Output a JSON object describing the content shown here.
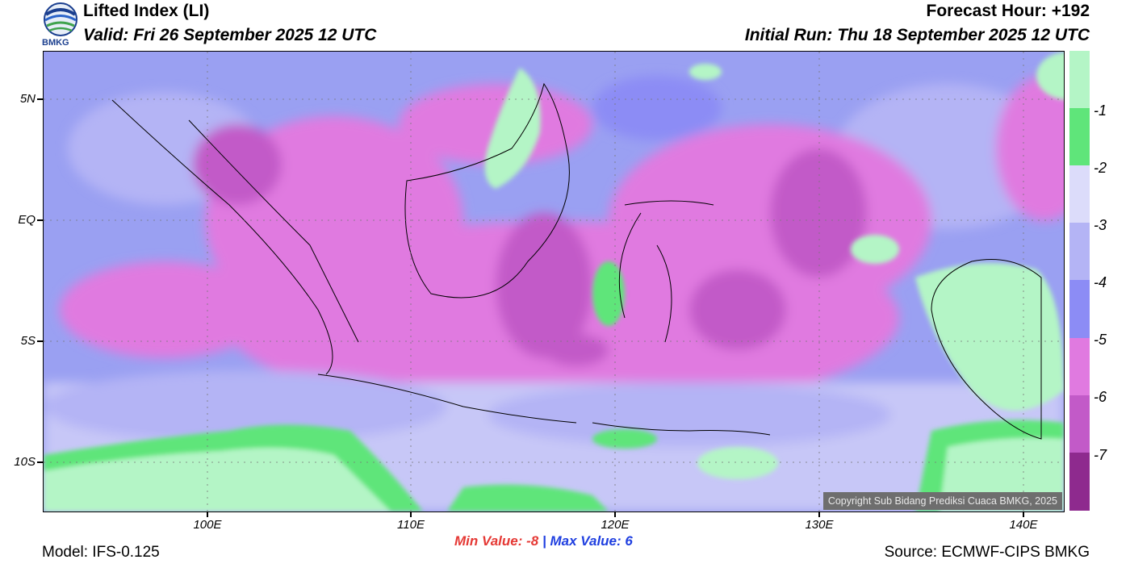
{
  "header": {
    "title": "Lifted Index (LI)",
    "valid": "Valid: Fri 26 September 2025 12 UTC",
    "forecast_hour": "Forecast Hour: +192",
    "initial_run": "Initial Run: Thu 18 September 2025 12 UTC",
    "logo_text": "BMKG"
  },
  "map": {
    "lat_labels": [
      "5N",
      "EQ",
      "5S",
      "10S"
    ],
    "lon_labels": [
      "100E",
      "110E",
      "120E",
      "130E",
      "140E"
    ],
    "copyright": "Copyright Sub Bidang Prediksi Cuaca BMKG, 2025",
    "icons": [
      "bmkg-logo"
    ]
  },
  "colorbar": {
    "labels": [
      "-1",
      "-2",
      "-3",
      "-4",
      "-5",
      "-6",
      "-7"
    ],
    "colors": [
      "#b4f5c6",
      "#5fe57a",
      "#dcdcfa",
      "#b4b4f5",
      "#8c8cf5",
      "#e07ae0",
      "#c25ac8",
      "#8e2a8e"
    ]
  },
  "stats": {
    "min_label": "Min Value:",
    "min_value": "-8",
    "separator": "|",
    "max_label": "Max Value:",
    "max_value": "6"
  },
  "footer": {
    "model": "Model: IFS-0.125",
    "source": "Source: ECMWF-CIPS BMKG"
  }
}
